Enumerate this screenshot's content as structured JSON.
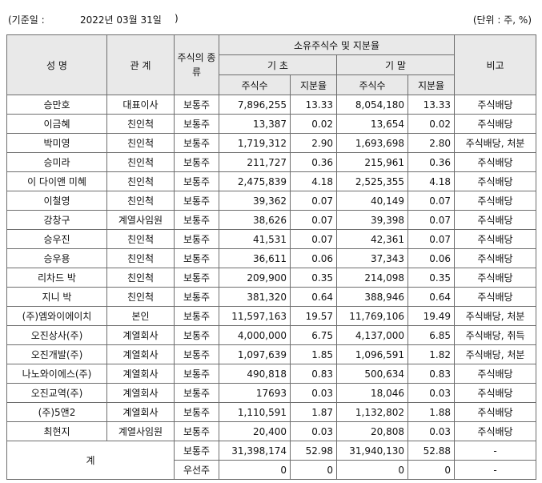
{
  "header": {
    "ref_label": "(기준일 :",
    "ref_date": "2022년 03월 31일",
    "ref_close": ")",
    "unit": "(단위 : 주, %)"
  },
  "table": {
    "col_name": "성 명",
    "col_relation": "관 계",
    "col_kind": "주식의 종류",
    "col_group": "소유주식수 및 지분율",
    "col_begin": "기 초",
    "col_end": "기 말",
    "col_note": "비고",
    "col_shares": "주식수",
    "col_ratio": "지분율",
    "rows": [
      {
        "name": "승만호",
        "relation": "대표이사",
        "kind": "보통주",
        "begin_shares": "7,896,255",
        "begin_ratio": "13.33",
        "end_shares": "8,054,180",
        "end_ratio": "13.33",
        "note": "주식배당"
      },
      {
        "name": "이금혜",
        "relation": "친인척",
        "kind": "보통주",
        "begin_shares": "13,387",
        "begin_ratio": "0.02",
        "end_shares": "13,654",
        "end_ratio": "0.02",
        "note": "주식배당"
      },
      {
        "name": "박미영",
        "relation": "친인척",
        "kind": "보통주",
        "begin_shares": "1,719,312",
        "begin_ratio": "2.90",
        "end_shares": "1,693,698",
        "end_ratio": "2.80",
        "note": "주식배당, 처분"
      },
      {
        "name": "승미라",
        "relation": "친인척",
        "kind": "보통주",
        "begin_shares": "211,727",
        "begin_ratio": "0.36",
        "end_shares": "215,961",
        "end_ratio": "0.36",
        "note": "주식배당"
      },
      {
        "name": "이 다이앤 미혜",
        "relation": "친인척",
        "kind": "보통주",
        "begin_shares": "2,475,839",
        "begin_ratio": "4.18",
        "end_shares": "2,525,355",
        "end_ratio": "4.18",
        "note": "주식배당"
      },
      {
        "name": "이철영",
        "relation": "친인척",
        "kind": "보통주",
        "begin_shares": "39,362",
        "begin_ratio": "0.07",
        "end_shares": "40,149",
        "end_ratio": "0.07",
        "note": "주식배당"
      },
      {
        "name": "강창구",
        "relation": "계열사임원",
        "kind": "보통주",
        "begin_shares": "38,626",
        "begin_ratio": "0.07",
        "end_shares": "39,398",
        "end_ratio": "0.07",
        "note": "주식배당"
      },
      {
        "name": "승우진",
        "relation": "친인척",
        "kind": "보통주",
        "begin_shares": "41,531",
        "begin_ratio": "0.07",
        "end_shares": "42,361",
        "end_ratio": "0.07",
        "note": "주식배당"
      },
      {
        "name": "승우용",
        "relation": "친인척",
        "kind": "보통주",
        "begin_shares": "36,611",
        "begin_ratio": "0.06",
        "end_shares": "37,343",
        "end_ratio": "0.06",
        "note": "주식배당"
      },
      {
        "name": "리차드 박",
        "relation": "친인척",
        "kind": "보통주",
        "begin_shares": "209,900",
        "begin_ratio": "0.35",
        "end_shares": "214,098",
        "end_ratio": "0.35",
        "note": "주식배당"
      },
      {
        "name": "지니 박",
        "relation": "친인척",
        "kind": "보통주",
        "begin_shares": "381,320",
        "begin_ratio": "0.64",
        "end_shares": "388,946",
        "end_ratio": "0.64",
        "note": "주식배당"
      },
      {
        "name": "(주)엠와이에이치",
        "relation": "본인",
        "kind": "보통주",
        "begin_shares": "11,597,163",
        "begin_ratio": "19.57",
        "end_shares": "11,769,106",
        "end_ratio": "19.49",
        "note": "주식배당, 처분"
      },
      {
        "name": "오진상사(주)",
        "relation": "계열회사",
        "kind": "보통주",
        "begin_shares": "4,000,000",
        "begin_ratio": "6.75",
        "end_shares": "4,137,000",
        "end_ratio": "6.85",
        "note": "주식배당, 취득"
      },
      {
        "name": "오진개발(주)",
        "relation": "계열회사",
        "kind": "보통주",
        "begin_shares": "1,097,639",
        "begin_ratio": "1.85",
        "end_shares": "1,096,591",
        "end_ratio": "1.82",
        "note": "주식배당, 처분"
      },
      {
        "name": "나노와이에스(주)",
        "relation": "계열회사",
        "kind": "보통주",
        "begin_shares": "490,818",
        "begin_ratio": "0.83",
        "end_shares": "500,634",
        "end_ratio": "0.83",
        "note": "주식배당"
      },
      {
        "name": "오진교역(주)",
        "relation": "계열회사",
        "kind": "보통주",
        "begin_shares": "17693",
        "begin_ratio": "0.03",
        "end_shares": "18,046",
        "end_ratio": "0.03",
        "note": "주식배당"
      },
      {
        "name": "(주)5앤2",
        "relation": "계열회사",
        "kind": "보통주",
        "begin_shares": "1,110,591",
        "begin_ratio": "1.87",
        "end_shares": "1,132,802",
        "end_ratio": "1.88",
        "note": "주식배당"
      },
      {
        "name": "최현지",
        "relation": "계열사임원",
        "kind": "보통주",
        "begin_shares": "20,400",
        "begin_ratio": "0.03",
        "end_shares": "20,808",
        "end_ratio": "0.03",
        "note": "주식배당"
      }
    ],
    "total": {
      "label": "계",
      "rows": [
        {
          "kind": "보통주",
          "begin_shares": "31,398,174",
          "begin_ratio": "52.98",
          "end_shares": "31,940,130",
          "end_ratio": "52.88",
          "note": "-"
        },
        {
          "kind": "우선주",
          "begin_shares": "0",
          "begin_ratio": "0",
          "end_shares": "0",
          "end_ratio": "0",
          "note": "-"
        }
      ]
    }
  }
}
